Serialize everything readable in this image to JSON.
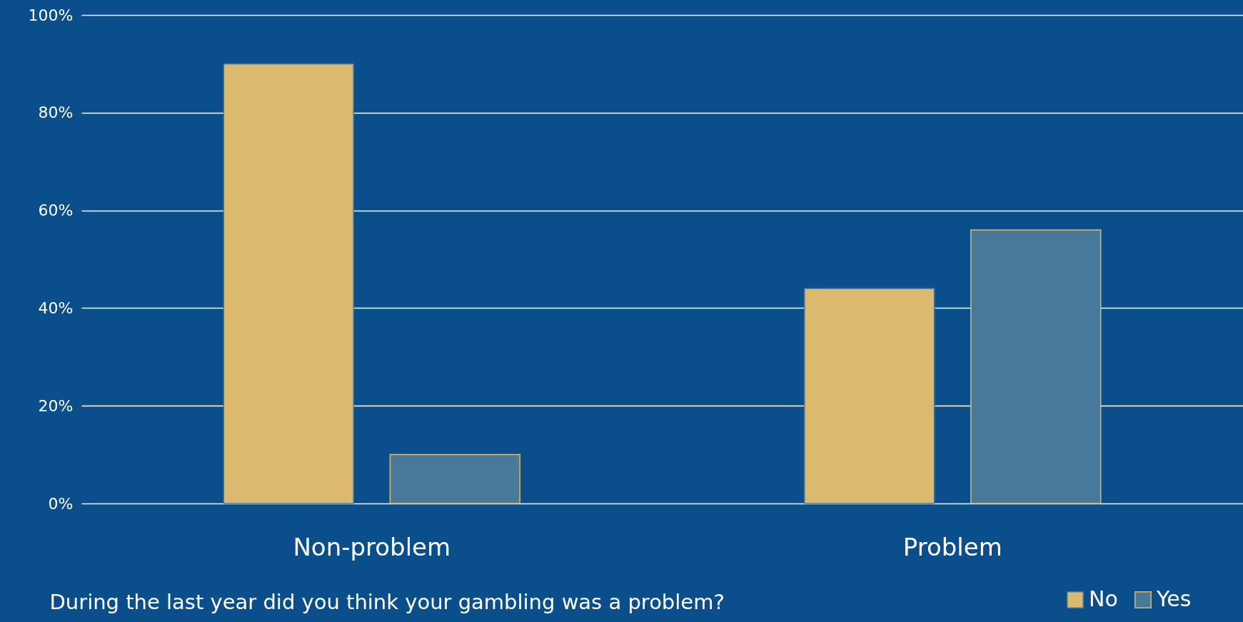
{
  "chart_data": {
    "type": "bar",
    "xlabel": "During the last year did you think your gambling was a problem?",
    "categories": [
      "Non-problem",
      "Problem"
    ],
    "series": [
      {
        "name": "No",
        "color": "#dbb96f",
        "values": [
          90,
          44
        ]
      },
      {
        "name": "Yes",
        "color": "#48789a",
        "values": [
          10,
          56
        ]
      }
    ],
    "ylim": [
      0,
      100
    ],
    "yticks": [
      {
        "value": 0,
        "label": "0%"
      },
      {
        "value": 20,
        "label": "20%"
      },
      {
        "value": 40,
        "label": "40%"
      },
      {
        "value": 60,
        "label": "60%"
      },
      {
        "value": 80,
        "label": "80%"
      },
      {
        "value": 100,
        "label": "100%"
      }
    ],
    "grid": "y",
    "legend": "bottom right"
  }
}
